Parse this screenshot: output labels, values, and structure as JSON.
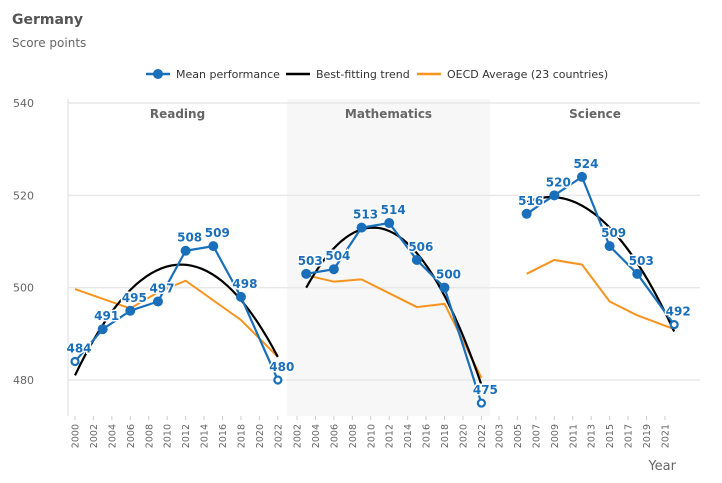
{
  "header": {
    "title": "Germany",
    "subtitle": "Score points"
  },
  "chart_data": {
    "type": "line",
    "title": "Germany",
    "subtitle": "Score points",
    "xlabel": "Year",
    "ylabel": "",
    "ylim": [
      472,
      540
    ],
    "yticks": [
      480,
      500,
      520,
      540
    ],
    "grid": true,
    "legend_position": "top",
    "legend": [
      "Mean performance",
      "Best-fitting trend",
      "OECD Average (23 countries)"
    ],
    "colors": {
      "mean": "#1a6fba",
      "trend": "#000000",
      "oecd": "#f7931e",
      "panel_shade": "#f7f7f7"
    },
    "panels": [
      {
        "name": "Reading",
        "shaded": false,
        "xlim": [
          2000,
          2022
        ],
        "xticks": [
          2000,
          2002,
          2004,
          2006,
          2008,
          2010,
          2012,
          2014,
          2016,
          2018,
          2020,
          2022
        ],
        "mean": [
          [
            2000,
            484,
            true
          ],
          [
            2003,
            491,
            false
          ],
          [
            2006,
            495,
            false
          ],
          [
            2009,
            497,
            false
          ],
          [
            2012,
            508,
            false
          ],
          [
            2015,
            509,
            false
          ],
          [
            2018,
            498,
            false
          ],
          [
            2022,
            480,
            true
          ]
        ],
        "oecd": [
          [
            2000,
            499.7
          ],
          [
            2006,
            495.5
          ],
          [
            2009,
            499
          ],
          [
            2012,
            501.5
          ],
          [
            2018,
            493
          ],
          [
            2022,
            485
          ]
        ],
        "trend": [
          [
            2000,
            481
          ],
          [
            2011.5,
            505
          ],
          [
            2022,
            485
          ]
        ]
      },
      {
        "name": "Mathematics",
        "shaded": true,
        "xlim": [
          2002,
          2022
        ],
        "xticks": [
          2002,
          2004,
          2006,
          2008,
          2010,
          2012,
          2014,
          2016,
          2018,
          2020,
          2022
        ],
        "mean": [
          [
            2003,
            503,
            false
          ],
          [
            2006,
            504,
            false
          ],
          [
            2009,
            513,
            false
          ],
          [
            2012,
            514,
            false
          ],
          [
            2015,
            506,
            false
          ],
          [
            2018,
            500,
            false
          ],
          [
            2022,
            475,
            true
          ]
        ],
        "oecd": [
          [
            2003,
            502.7
          ],
          [
            2006,
            501.3
          ],
          [
            2009,
            501.8
          ],
          [
            2015,
            495.8
          ],
          [
            2018,
            496.5
          ],
          [
            2022,
            480.5
          ]
        ],
        "trend": [
          [
            2003,
            500
          ],
          [
            2010.5,
            513
          ],
          [
            2022,
            479
          ]
        ]
      },
      {
        "name": "Science",
        "shaded": false,
        "xlim": [
          2003,
          2021
        ],
        "xticks": [
          2003,
          2005,
          2007,
          2009,
          2011,
          2013,
          2015,
          2017,
          2019,
          2021
        ],
        "mean": [
          [
            2006,
            516,
            false
          ],
          [
            2009,
            520,
            false
          ],
          [
            2012,
            524,
            false
          ],
          [
            2015,
            509,
            false
          ],
          [
            2018,
            503,
            false
          ],
          [
            2022,
            492,
            true
          ]
        ],
        "oecd": [
          [
            2006,
            503
          ],
          [
            2009,
            506
          ],
          [
            2012,
            505
          ],
          [
            2015,
            497
          ],
          [
            2018,
            494
          ],
          [
            2022,
            491
          ]
        ],
        "trend": [
          [
            2006,
            518.5
          ],
          [
            2009,
            519.6
          ],
          [
            2022,
            490.5
          ]
        ]
      }
    ]
  }
}
